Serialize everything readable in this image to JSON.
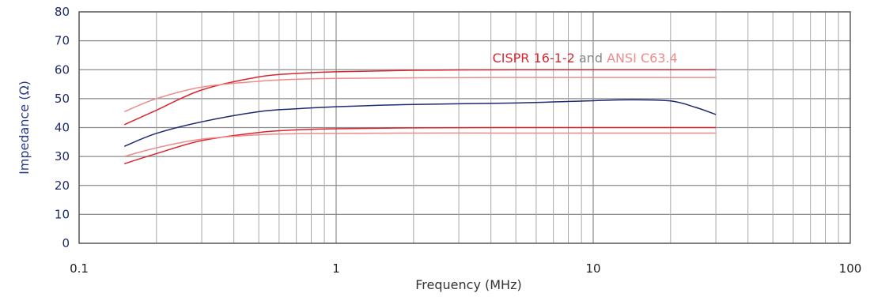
{
  "chart_data": {
    "type": "line",
    "title": "",
    "xlabel": "Frequency (MHz)",
    "ylabel": "Impedance (Ω)",
    "x_scale": "log",
    "xlim": [
      0.1,
      100
    ],
    "ylim": [
      0,
      80
    ],
    "x_ticks": [
      {
        "value": 0.1,
        "label": "0.1"
      },
      {
        "value": 1,
        "label": "1"
      },
      {
        "value": 10,
        "label": "10"
      },
      {
        "value": 100,
        "label": "100"
      }
    ],
    "y_ticks": [
      {
        "value": 0,
        "label": "0"
      },
      {
        "value": 10,
        "label": "10"
      },
      {
        "value": 20,
        "label": "20"
      },
      {
        "value": 30,
        "label": "30"
      },
      {
        "value": 40,
        "label": "40"
      },
      {
        "value": 50,
        "label": "50"
      },
      {
        "value": 60,
        "label": "60"
      },
      {
        "value": 70,
        "label": "70"
      },
      {
        "value": 80,
        "label": "80"
      }
    ],
    "grid": true,
    "legend": {
      "placement": "top-center",
      "entries": [
        {
          "text": "CISPR 16-1-2",
          "color": "#d9262e"
        },
        {
          "text": " and ",
          "color": "#888888"
        },
        {
          "text": "ANSI C63.4",
          "color": "#ee8a8a"
        }
      ]
    },
    "series": [
      {
        "color": "#1d2a6e",
        "x": [
          0.15,
          0.2,
          0.3,
          0.5,
          0.7,
          1,
          2,
          5,
          10,
          14,
          20,
          25,
          30
        ],
        "y": [
          33.5,
          38,
          42,
          45.5,
          46.5,
          47.2,
          48,
          48.5,
          49.3,
          49.6,
          49.2,
          47,
          44.5
        ]
      },
      {
        "color": "#d9262e",
        "x": [
          0.15,
          0.2,
          0.3,
          0.5,
          0.7,
          1,
          2,
          5,
          10,
          30
        ],
        "y": [
          41,
          46,
          53,
          57.5,
          58.7,
          59.3,
          59.8,
          60,
          60,
          60
        ]
      },
      {
        "color": "#d9262e",
        "x": [
          0.15,
          0.2,
          0.3,
          0.5,
          0.7,
          1,
          2,
          5,
          10,
          30
        ],
        "y": [
          27.5,
          31,
          35.5,
          38.3,
          39.2,
          39.6,
          39.9,
          40,
          40,
          40
        ]
      },
      {
        "color": "#ee8a8a",
        "x": [
          0.15,
          0.2,
          0.3,
          0.5,
          0.7,
          1,
          2,
          5,
          10,
          30
        ],
        "y": [
          45.5,
          50,
          54,
          56,
          56.7,
          57,
          57.2,
          57.3,
          57.3,
          57.3
        ]
      },
      {
        "color": "#ee8a8a",
        "x": [
          0.15,
          0.2,
          0.3,
          0.5,
          0.7,
          1,
          2,
          5,
          10,
          30
        ],
        "y": [
          30,
          33,
          36,
          37.5,
          37.9,
          38,
          38.1,
          38.1,
          38.1,
          38.1
        ]
      }
    ]
  }
}
